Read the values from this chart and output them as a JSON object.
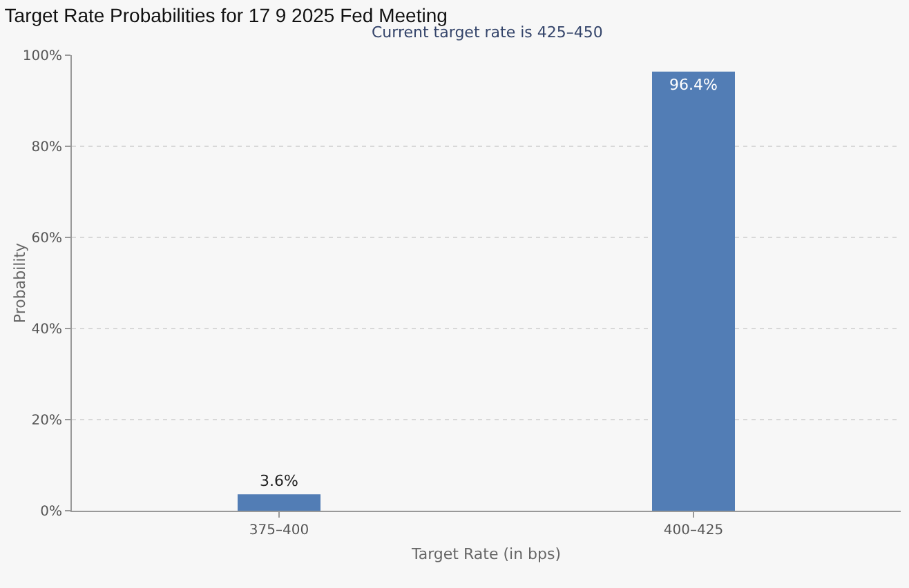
{
  "chart_data": {
    "type": "bar",
    "title": "Target Rate Probabilities for 17 9 2025 Fed Meeting",
    "subtitle": "Current target rate is 425–450",
    "xlabel": "Target Rate (in bps)",
    "ylabel": "Probability",
    "categories": [
      "375–400",
      "400–425"
    ],
    "values": [
      3.6,
      96.4
    ],
    "value_labels": [
      "3.6%",
      "96.4%"
    ],
    "color": "#527db5",
    "ylim": [
      0,
      100
    ],
    "yticks": [
      {
        "value": 0,
        "label": "0%"
      },
      {
        "value": 20,
        "label": "20%"
      },
      {
        "value": 40,
        "label": "40%"
      },
      {
        "value": 60,
        "label": "60%"
      },
      {
        "value": 80,
        "label": "80%"
      },
      {
        "value": 100,
        "label": "100%"
      }
    ],
    "grid": "y",
    "legend": false
  }
}
